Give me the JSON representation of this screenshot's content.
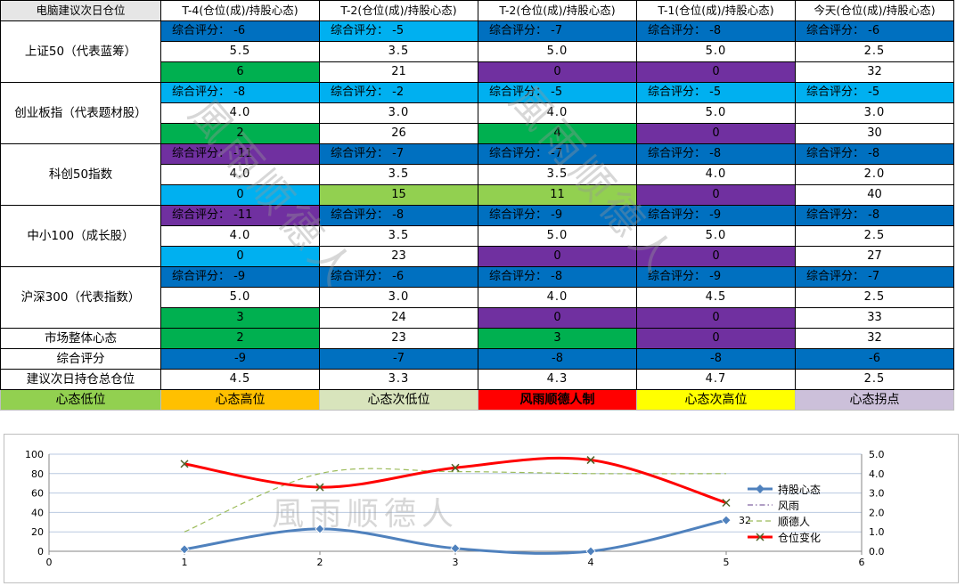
{
  "table": {
    "header": [
      "电脑建议次日仓位",
      "T-4(仓位(成)/持股心态)",
      "T-2(仓位(成)/持股心态)",
      "T-2(仓位(成)/持股心态)",
      "T-1(仓位(成)/持股心态)",
      "今天(仓位(成)/持股心态)"
    ],
    "groups": [
      {
        "name": "上证50（代表蓝筹）",
        "scores": [
          "综合评分： -6",
          "综合评分： -5",
          "综合评分： -7",
          "综合评分： -8",
          "综合评分： -6"
        ],
        "positions": [
          "5.5",
          "3.5",
          "5.0",
          "5.0",
          "2.5"
        ],
        "moods": [
          "6",
          "21",
          "0",
          "0",
          "32"
        ]
      },
      {
        "name": "创业板指（代表题材股）",
        "scores": [
          "综合评分： -8",
          "综合评分： -2",
          "综合评分： -5",
          "综合评分： -5",
          "综合评分： -5"
        ],
        "positions": [
          "4.0",
          "3.0",
          "4.0",
          "5.0",
          "3.0"
        ],
        "moods": [
          "2",
          "26",
          "4",
          "0",
          "30"
        ]
      },
      {
        "name": "科创50指数",
        "scores": [
          "综合评分： -11",
          "综合评分： -7",
          "综合评分： -7",
          "综合评分： -8",
          "综合评分： -8"
        ],
        "positions": [
          "4.0",
          "3.5",
          "3.5",
          "4.0",
          "2.0"
        ],
        "moods": [
          "0",
          "15",
          "11",
          "0",
          "40"
        ]
      },
      {
        "name": "中小100（成长股）",
        "scores": [
          "综合评分： -11",
          "综合评分： -8",
          "综合评分： -9",
          "综合评分： -9",
          "综合评分： -8"
        ],
        "positions": [
          "4.0",
          "3.5",
          "5.0",
          "5.0",
          "2.5"
        ],
        "moods": [
          "0",
          "23",
          "0",
          "0",
          "27"
        ]
      },
      {
        "name": "沪深300（代表指数）",
        "scores": [
          "综合评分： -9",
          "综合评分： -6",
          "综合评分： -8",
          "综合评分： -9",
          "综合评分： -7"
        ],
        "positions": [
          "5.0",
          "3.0",
          "4.0",
          "4.5",
          "2.5"
        ],
        "moods": [
          "3",
          "24",
          "0",
          "0",
          "33"
        ]
      }
    ],
    "market_row": {
      "name": "市场整体心态",
      "values": [
        "2",
        "23",
        "3",
        "0",
        "32"
      ]
    },
    "overall_row": {
      "name": "综合评分",
      "values": [
        "-9",
        "-7",
        "-8",
        "-8",
        "-6"
      ]
    },
    "suggest_row": {
      "name": "建议次日持仓总仓位",
      "values": [
        "4.5",
        "3.3",
        "4.3",
        "4.7",
        "2.5"
      ]
    }
  },
  "legend": [
    {
      "label": "心态低位",
      "bg": "#92d050",
      "color": "#000000",
      "bold": false
    },
    {
      "label": "心态高位",
      "bg": "#ffc000",
      "color": "#000000",
      "bold": false
    },
    {
      "label": "心态次低位",
      "bg": "#d8e4bc",
      "color": "#000000",
      "bold": false
    },
    {
      "label": "风雨顺德人制",
      "bg": "#ff0000",
      "color": "#000000",
      "bold": true
    },
    {
      "label": "心态次高位",
      "bg": "#ffff00",
      "color": "#000000",
      "bold": false
    },
    {
      "label": "心态拐点",
      "bg": "#ccc0da",
      "color": "#000000",
      "bold": false
    }
  ],
  "colors": {
    "score_dark": "#0070c0",
    "score_light": "#00b0f0",
    "purple": "#7030a0",
    "green": "#00b050",
    "lightgreen": "#92d050",
    "white": "#ffffff"
  },
  "cell_colors": {
    "scores": [
      [
        "score_dark",
        "score_light",
        "score_dark",
        "score_dark",
        "score_dark"
      ],
      [
        "score_light",
        "score_light",
        "score_light",
        "score_light",
        "score_light"
      ],
      [
        "purple",
        "score_dark",
        "score_dark",
        "score_dark",
        "score_dark"
      ],
      [
        "purple",
        "score_dark",
        "score_dark",
        "score_dark",
        "score_dark"
      ],
      [
        "score_dark",
        "score_dark",
        "score_dark",
        "score_dark",
        "score_dark"
      ]
    ],
    "moods": [
      [
        "green",
        "white",
        "purple",
        "purple",
        "white"
      ],
      [
        "green",
        "white",
        "green",
        "purple",
        "white"
      ],
      [
        "score_light",
        "lightgreen",
        "lightgreen",
        "purple",
        "white"
      ],
      [
        "score_light",
        "white",
        "purple",
        "purple",
        "white"
      ],
      [
        "green",
        "white",
        "purple",
        "purple",
        "white"
      ]
    ],
    "market": [
      "green",
      "white",
      "green",
      "purple",
      "white"
    ],
    "overall": [
      "score_dark",
      "score_dark",
      "score_dark",
      "score_dark",
      "score_dark"
    ]
  },
  "watermark": "風雨顺德人",
  "chart_data": {
    "type": "line",
    "x_ticks": [
      "0",
      "1",
      "2",
      "3",
      "4",
      "5",
      "6"
    ],
    "xlim": [
      0,
      6
    ],
    "ylim_left": [
      0,
      100
    ],
    "y_ticks_left": [
      "0",
      "20",
      "40",
      "60",
      "80",
      "100"
    ],
    "ylim_right": [
      0,
      5
    ],
    "y_ticks_right": [
      "0.0",
      "1.0",
      "2.0",
      "3.0",
      "4.0",
      "5.0"
    ],
    "grid": true,
    "legend_position": "right",
    "series": [
      {
        "name": "持股心态",
        "axis": "left",
        "x": [
          1,
          2,
          3,
          4,
          5
        ],
        "y": [
          2,
          23,
          3,
          0,
          32
        ],
        "color": "#4f81bd",
        "marker": "diamond",
        "style": "solid",
        "label_last": "32"
      },
      {
        "name": "风雨",
        "axis": "left",
        "x": [],
        "y": [],
        "color": "#8064a2",
        "marker": "none",
        "style": "dashdot"
      },
      {
        "name": "顺德人",
        "axis": "left",
        "x": [
          1,
          2,
          3,
          4,
          5
        ],
        "y": [
          20,
          80,
          82,
          80,
          80
        ],
        "color": "#9bbb59",
        "marker": "none",
        "style": "dash"
      },
      {
        "name": "仓位变化",
        "axis": "right",
        "x": [
          1,
          2,
          3,
          4,
          5
        ],
        "y": [
          4.5,
          3.3,
          4.3,
          4.7,
          2.5
        ],
        "color": "#ff0000",
        "marker": "x",
        "style": "solid"
      }
    ]
  }
}
